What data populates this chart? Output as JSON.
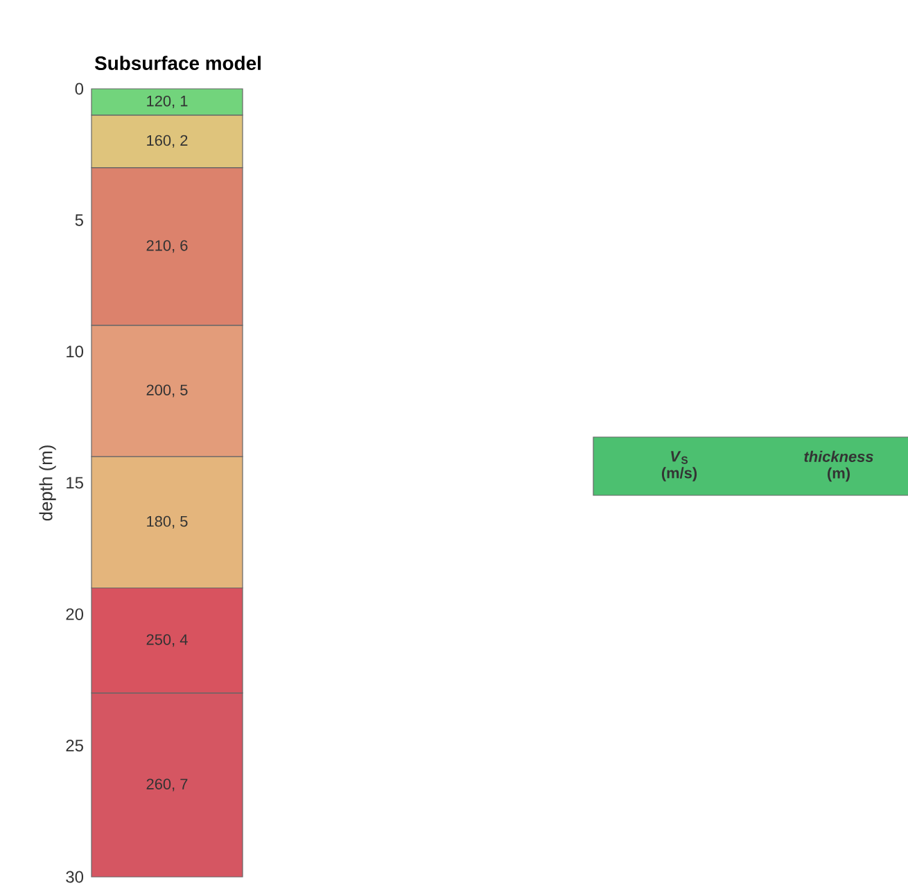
{
  "chart_data": {
    "type": "bar",
    "stacked": true,
    "title": "Subsurface model",
    "ylabel": "depth (m)",
    "categories": [
      null
    ],
    "ylim": [
      30,
      0
    ],
    "yticks": [
      0,
      5,
      10,
      15,
      20,
      25,
      30
    ],
    "series": [
      {
        "color": "#72d47c",
        "values": [
          1
        ],
        "value_labels": [
          "120, 1"
        ]
      },
      {
        "color": "#dfc47c",
        "values": [
          2
        ],
        "value_labels": [
          "160, 2"
        ]
      },
      {
        "color": "#dc826c",
        "values": [
          6
        ],
        "value_labels": [
          "210, 6"
        ]
      },
      {
        "color": "#e39c7a",
        "values": [
          5
        ],
        "value_labels": [
          "200, 5"
        ]
      },
      {
        "color": "#e4b57c",
        "values": [
          5
        ],
        "value_labels": [
          "180, 5"
        ]
      },
      {
        "color": "#d8535f",
        "values": [
          4
        ],
        "value_labels": [
          "250, 4"
        ]
      },
      {
        "color": "#d55662",
        "values": [
          7
        ],
        "value_labels": [
          "260, 7"
        ]
      }
    ],
    "annotations": [
      "*V*$_{S}$ (m/s)",
      "*thickness* (m)"
    ]
  }
}
